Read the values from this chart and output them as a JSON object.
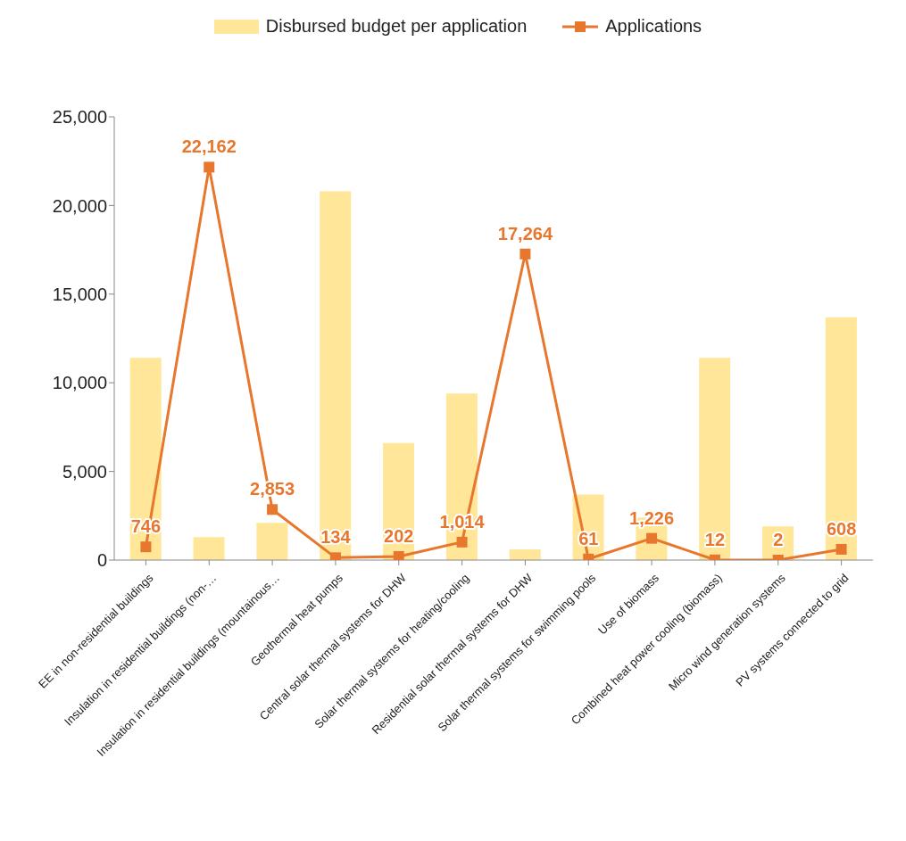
{
  "chart_data": {
    "type": "bar",
    "categories": [
      "EE in non-residential buildings",
      "Insulation in residential buildings (non-…",
      "Insulation in residential buildings (mountainous…",
      "Geothermal heat pumps",
      "Central solar thermal systems for DHW",
      "Solar thermal systems for heating/cooling",
      "Residential solar thermal systems for DHW",
      "Solar thermal systems for swimming pools",
      "Use of biomass",
      "Combined heat power cooling (biomass)",
      "Micro wind generation systems",
      "PV systems connected to grid"
    ],
    "series": [
      {
        "name": "Disbursed budget per application",
        "color": "#ffe699",
        "values": [
          11400,
          1300,
          2100,
          20800,
          6600,
          9400,
          600,
          3700,
          2400,
          11400,
          1900,
          13700
        ]
      },
      {
        "name": "Applications",
        "type": "line",
        "color": "#e8772e",
        "marker": "square",
        "values": [
          746,
          22162,
          2853,
          134,
          202,
          1014,
          17264,
          61,
          1226,
          12,
          2,
          608
        ],
        "value_labels": [
          "746",
          "22,162",
          "2,853",
          "134",
          "202",
          "1,014",
          "17,264",
          "61",
          "1,226",
          "12",
          "2",
          "608"
        ]
      }
    ],
    "ylim": [
      0,
      25000
    ],
    "yticks": [
      {
        "value": 0,
        "label": "0"
      },
      {
        "value": 5000,
        "label": "5,000"
      },
      {
        "value": 10000,
        "label": "10,000"
      },
      {
        "value": 15000,
        "label": "15,000"
      },
      {
        "value": 20000,
        "label": "20,000"
      },
      {
        "value": 25000,
        "label": "25,000"
      }
    ],
    "grid": false,
    "legend": "top"
  }
}
